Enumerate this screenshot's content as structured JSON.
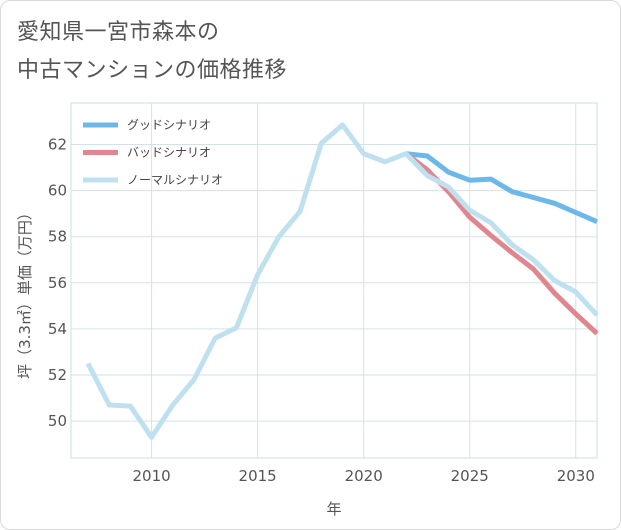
{
  "title_line1": "愛知県一宮市森本の",
  "title_line2": "中古マンションの価格推移",
  "chart_data": {
    "type": "line",
    "xlabel": "年",
    "ylabel": "坪（3.3㎡）単価（万円）",
    "xlim": [
      2006.2,
      2031
    ],
    "ylim": [
      48.4,
      63.8
    ],
    "x_ticks": [
      2010,
      2015,
      2020,
      2025,
      2030
    ],
    "y_ticks": [
      50,
      52,
      54,
      56,
      58,
      60,
      62
    ],
    "grid": true,
    "legend_position": "top-left",
    "series": [
      {
        "name": "グッドシナリオ",
        "color": "#6cb8e8",
        "x": [
          2022,
          2023,
          2024,
          2025,
          2026,
          2027,
          2028,
          2029,
          2030,
          2031
        ],
        "values": [
          61.6,
          61.5,
          60.8,
          60.45,
          60.5,
          59.95,
          59.7,
          59.45,
          59.05,
          58.65
        ]
      },
      {
        "name": "バッドシナリオ",
        "color": "#e0868f",
        "x": [
          2022,
          2023,
          2024,
          2025,
          2026,
          2027,
          2028,
          2029,
          2030,
          2031
        ],
        "values": [
          61.6,
          60.9,
          59.95,
          58.85,
          58.05,
          57.3,
          56.6,
          55.55,
          54.65,
          53.8
        ]
      },
      {
        "name": "ノーマルシナリオ",
        "color": "#bfe0ee",
        "x": [
          2007,
          2008,
          2009,
          2010,
          2011,
          2012,
          2013,
          2014,
          2015,
          2016,
          2017,
          2018,
          2019,
          2020,
          2021,
          2022,
          2023,
          2024,
          2025,
          2026,
          2027,
          2028,
          2029,
          2030,
          2031
        ],
        "values": [
          52.5,
          50.7,
          50.65,
          49.3,
          50.7,
          51.8,
          53.6,
          54.05,
          56.35,
          58.0,
          59.1,
          62.05,
          62.85,
          61.6,
          61.25,
          61.6,
          60.65,
          60.15,
          59.15,
          58.6,
          57.65,
          57.0,
          56.1,
          55.6,
          54.6
        ]
      }
    ]
  }
}
